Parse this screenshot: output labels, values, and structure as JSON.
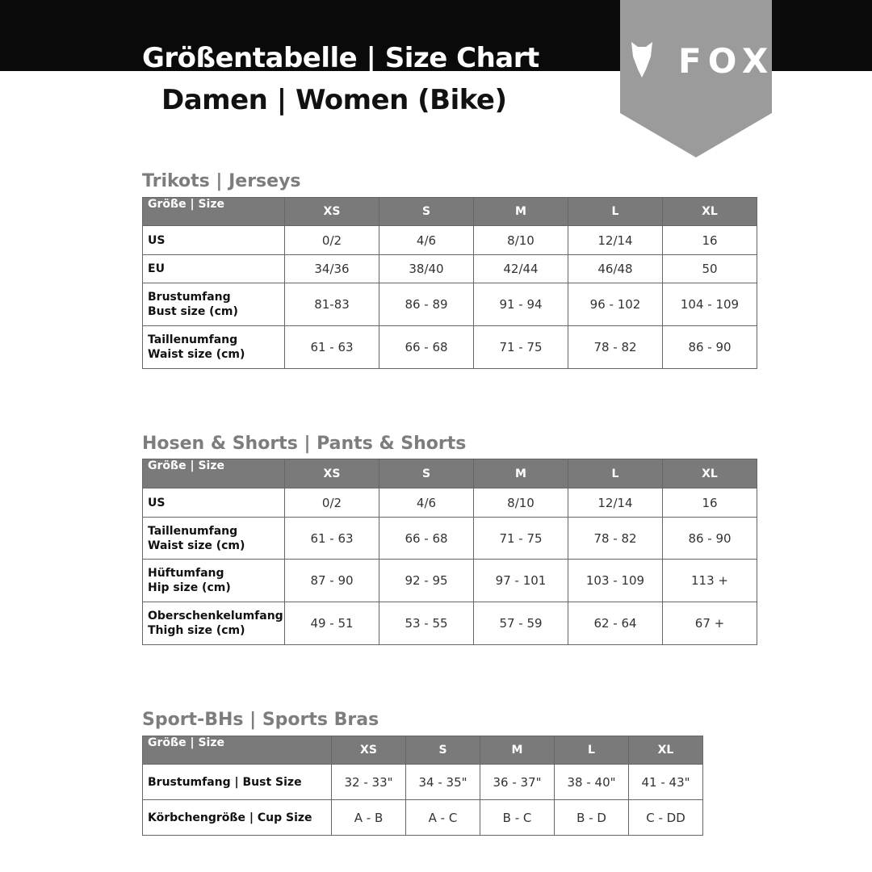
{
  "header": {
    "title": "Größentabelle | Size Chart",
    "subtitle": "Damen | Women (Bike)",
    "logo": "FOX"
  },
  "tables": [
    {
      "heading": "Trikots | Jerseys",
      "columns": [
        "Größe | Size",
        "XS",
        "S",
        "M",
        "L",
        "XL"
      ],
      "rows": [
        {
          "label": [
            "US"
          ],
          "cells": [
            "0/2",
            "4/6",
            "8/10",
            "12/14",
            "16"
          ]
        },
        {
          "label": [
            "EU"
          ],
          "cells": [
            "34/36",
            "38/40",
            "42/44",
            "46/48",
            "50"
          ]
        },
        {
          "label": [
            "Brustumfang",
            "Bust size (cm)"
          ],
          "cells": [
            "81-83",
            "86 - 89",
            "91 - 94",
            "96 - 102",
            "104 - 109"
          ]
        },
        {
          "label": [
            "Taillenumfang",
            "Waist size (cm)"
          ],
          "cells": [
            "61 - 63",
            "66 - 68",
            "71 - 75",
            "78 - 82",
            "86 - 90"
          ]
        }
      ]
    },
    {
      "heading": "Hosen & Shorts | Pants & Shorts",
      "columns": [
        "Größe | Size",
        "XS",
        "S",
        "M",
        "L",
        "XL"
      ],
      "rows": [
        {
          "label": [
            "US"
          ],
          "cells": [
            "0/2",
            "4/6",
            "8/10",
            "12/14",
            "16"
          ]
        },
        {
          "label": [
            "Taillenumfang",
            "Waist size (cm)"
          ],
          "cells": [
            "61 - 63",
            "66 - 68",
            "71 - 75",
            "78 - 82",
            "86 - 90"
          ]
        },
        {
          "label": [
            "Hüftumfang",
            "Hip size (cm)"
          ],
          "cells": [
            "87 - 90",
            "92 - 95",
            "97 - 101",
            "103 - 109",
            "113 +"
          ]
        },
        {
          "label": [
            "Oberschenkelumfang",
            "Thigh size (cm)"
          ],
          "cells": [
            "49 - 51",
            "53 - 55",
            "57 - 59",
            "62 - 64",
            "67 +"
          ]
        }
      ]
    },
    {
      "heading": "Sport-BHs | Sports Bras",
      "columns": [
        "Größe | Size",
        "XS",
        "S",
        "M",
        "L",
        "XL"
      ],
      "rows": [
        {
          "label": [
            "Brustumfang | Bust Size"
          ],
          "cells": [
            "32 - 33\"",
            "34 - 35\"",
            "36 - 37\"",
            "38 - 40\"",
            "41 - 43\""
          ]
        },
        {
          "label": [
            "Körbchengröße | Cup Size"
          ],
          "cells": [
            "A - B",
            "A - C",
            "B - C",
            "B - D",
            "C - DD"
          ]
        }
      ]
    }
  ]
}
